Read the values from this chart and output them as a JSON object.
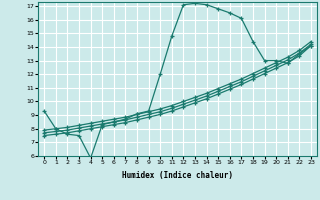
{
  "bg_color": "#cceaea",
  "line_color": "#1a7a6e",
  "grid_color": "#ffffff",
  "xlabel": "Humidex (Indice chaleur)",
  "xlim": [
    -0.5,
    23.5
  ],
  "ylim": [
    6,
    17.3
  ],
  "yticks": [
    6,
    7,
    8,
    9,
    10,
    11,
    12,
    13,
    14,
    15,
    16,
    17
  ],
  "xticks": [
    0,
    1,
    2,
    3,
    4,
    5,
    6,
    7,
    8,
    9,
    10,
    11,
    12,
    13,
    14,
    15,
    16,
    17,
    18,
    19,
    20,
    21,
    22,
    23
  ],
  "lines": [
    {
      "x": [
        0,
        1,
        2,
        3,
        4,
        5,
        6,
        7,
        8,
        9,
        10,
        11,
        12,
        13,
        14,
        15,
        16,
        17,
        18,
        19,
        20,
        21,
        22,
        23
      ],
      "y": [
        9.3,
        8.0,
        7.6,
        7.5,
        5.85,
        8.3,
        8.5,
        8.7,
        9.1,
        9.3,
        12.0,
        14.8,
        17.1,
        17.2,
        17.1,
        16.8,
        16.5,
        16.1,
        14.4,
        13.0,
        13.0,
        12.8,
        13.5,
        14.1
      ]
    },
    {
      "x": [
        0,
        1,
        2,
        3,
        4,
        5,
        6,
        7,
        8,
        9,
        10,
        11,
        12,
        13,
        14,
        15,
        16,
        17,
        18,
        19,
        20,
        21,
        22,
        23
      ],
      "y": [
        7.5,
        7.6,
        7.7,
        7.85,
        8.0,
        8.15,
        8.3,
        8.45,
        8.65,
        8.85,
        9.05,
        9.3,
        9.6,
        9.9,
        10.2,
        10.55,
        10.9,
        11.25,
        11.65,
        12.05,
        12.45,
        12.85,
        13.35,
        14.1
      ]
    },
    {
      "x": [
        0,
        1,
        2,
        3,
        4,
        5,
        6,
        7,
        8,
        9,
        10,
        11,
        12,
        13,
        14,
        15,
        16,
        17,
        18,
        19,
        20,
        21,
        22,
        23
      ],
      "y": [
        7.7,
        7.8,
        7.9,
        8.05,
        8.2,
        8.35,
        8.5,
        8.65,
        8.85,
        9.05,
        9.25,
        9.5,
        9.8,
        10.1,
        10.4,
        10.75,
        11.1,
        11.45,
        11.85,
        12.25,
        12.65,
        13.05,
        13.55,
        14.2
      ]
    },
    {
      "x": [
        0,
        1,
        2,
        3,
        4,
        5,
        6,
        7,
        8,
        9,
        10,
        11,
        12,
        13,
        14,
        15,
        16,
        17,
        18,
        19,
        20,
        21,
        22,
        23
      ],
      "y": [
        7.9,
        8.0,
        8.1,
        8.25,
        8.4,
        8.55,
        8.7,
        8.85,
        9.05,
        9.25,
        9.45,
        9.7,
        10.0,
        10.3,
        10.6,
        10.95,
        11.3,
        11.65,
        12.05,
        12.45,
        12.85,
        13.25,
        13.75,
        14.4
      ]
    }
  ]
}
